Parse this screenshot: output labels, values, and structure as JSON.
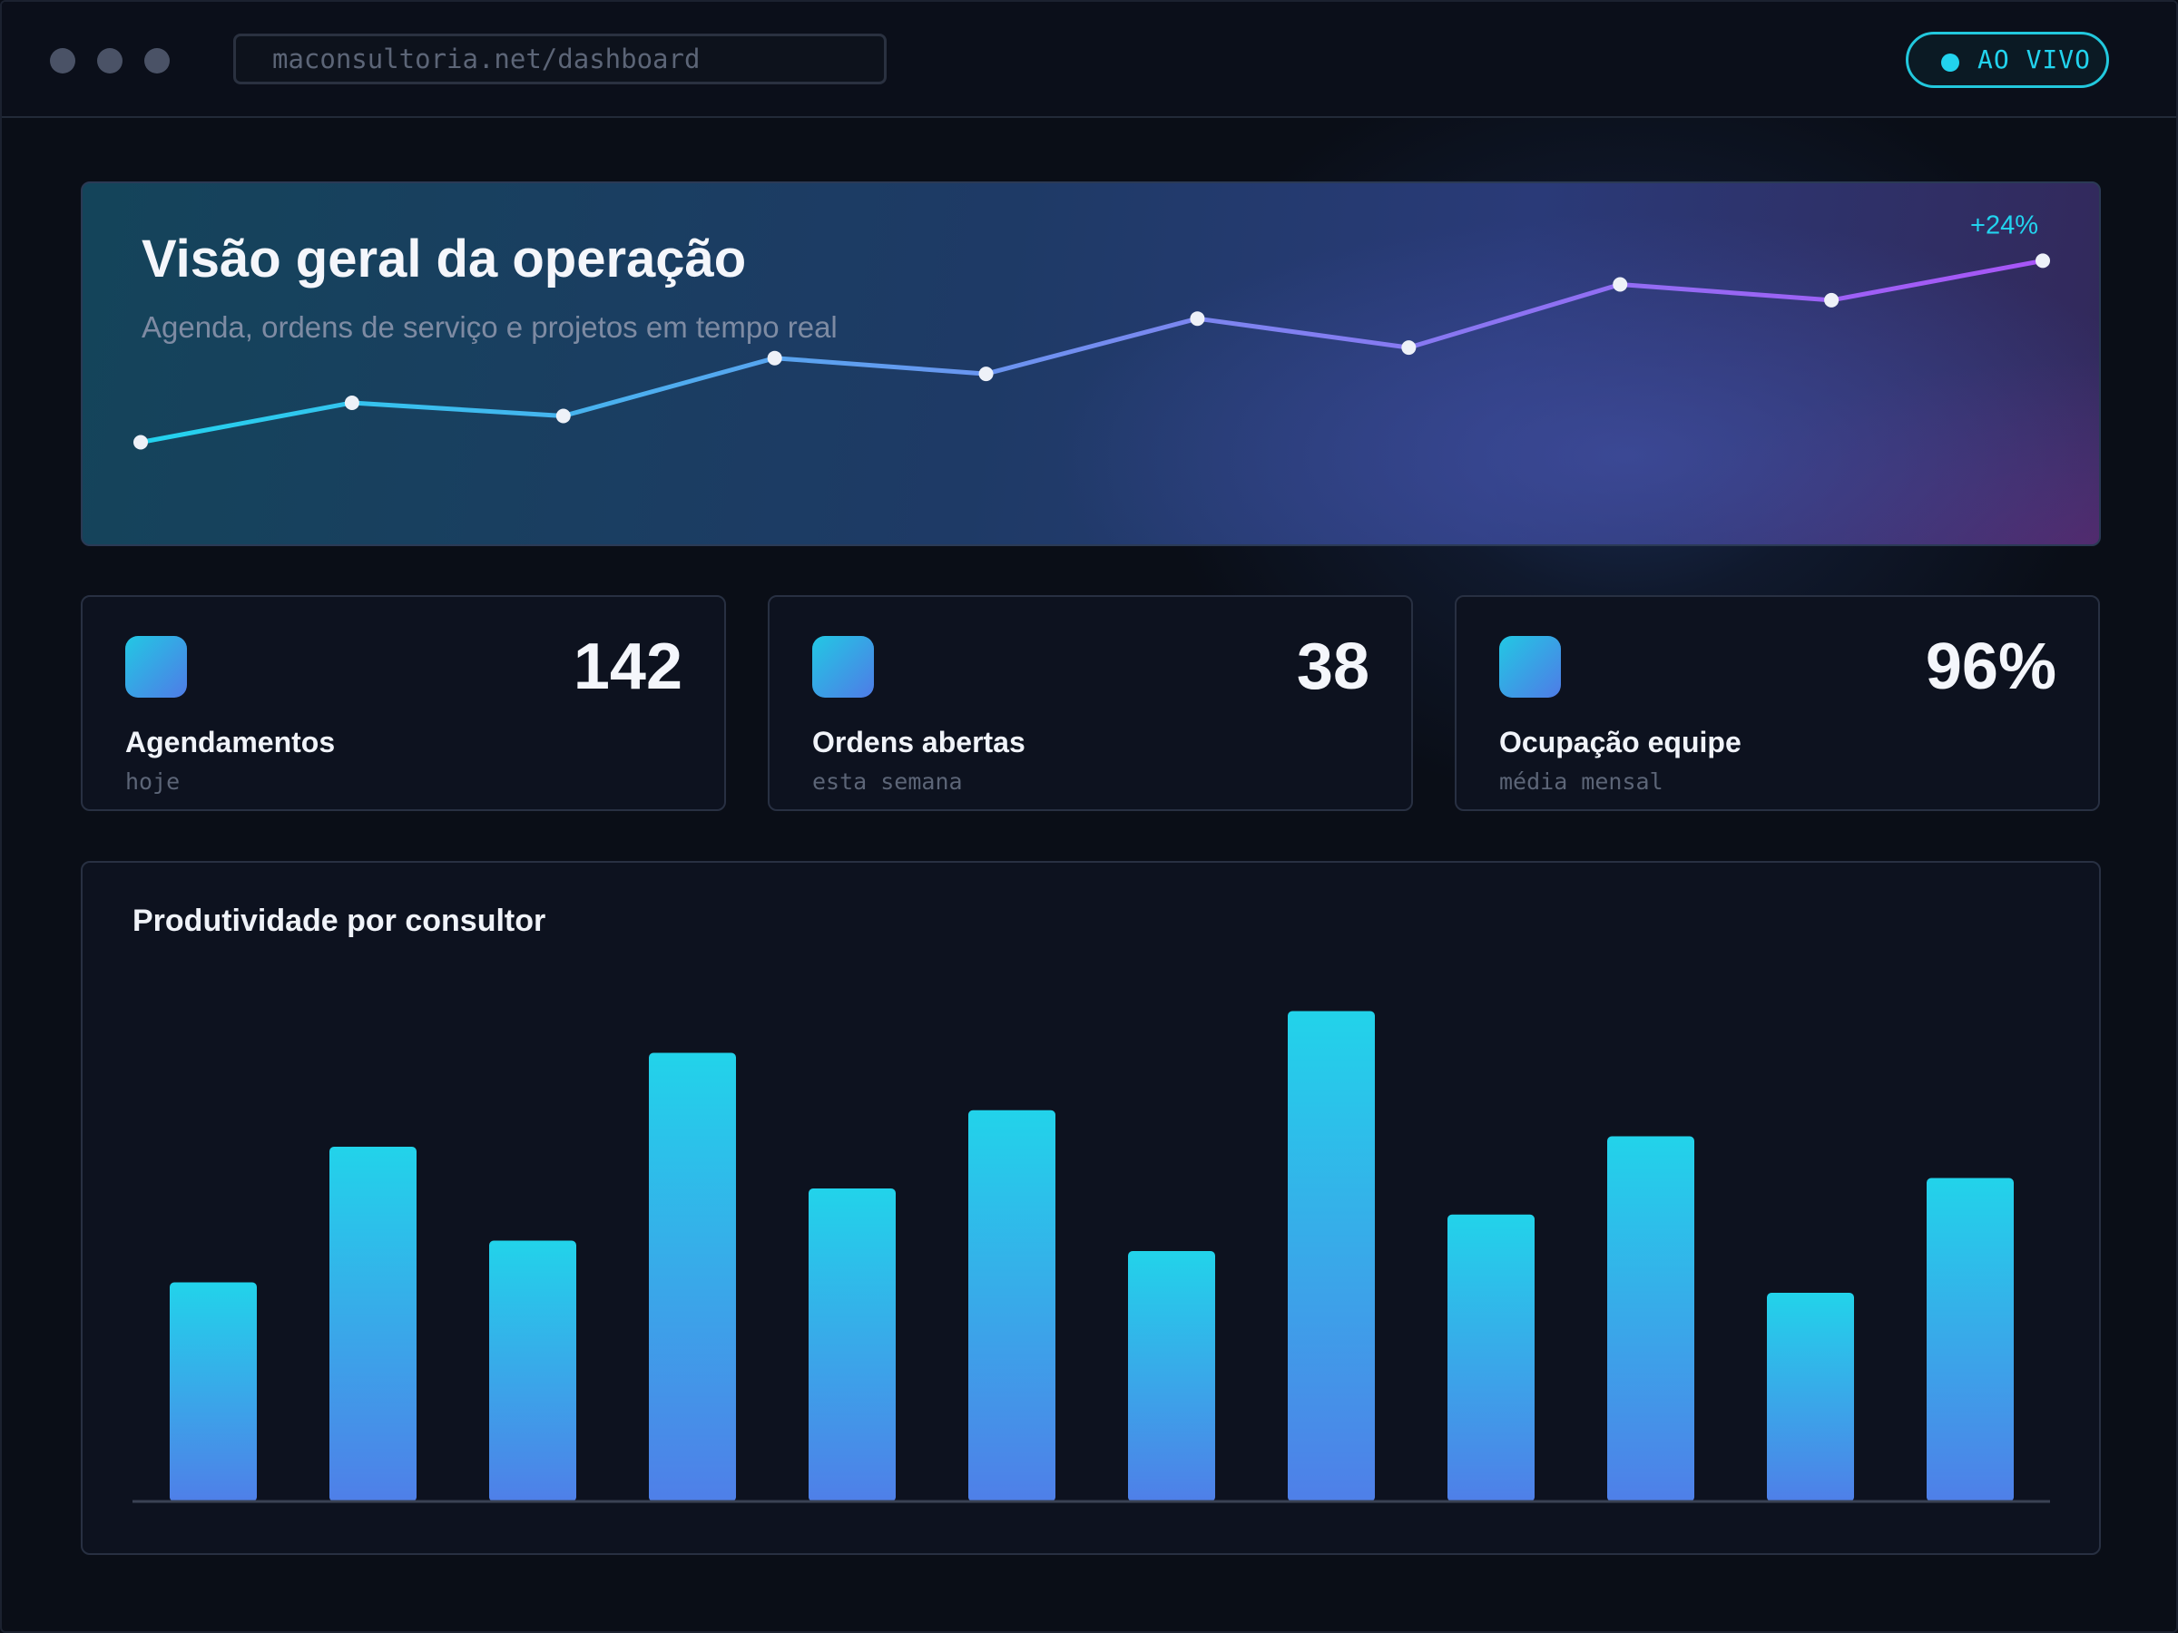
{
  "browser": {
    "url": "maconsultoria.net/dashboard",
    "live_label": "AO VIVO"
  },
  "hero": {
    "title": "Visão geral da operação",
    "subtitle": "Agenda, ordens de serviço e projetos em tempo real",
    "trend_label": "+24%"
  },
  "kpis": [
    {
      "value": "142",
      "label": "Agendamentos",
      "sub": "hoje"
    },
    {
      "value": "38",
      "label": "Ordens abertas",
      "sub": "esta semana"
    },
    {
      "value": "96%",
      "label": "Ocupação equipe",
      "sub": "média mensal"
    }
  ],
  "productivity": {
    "title": "Produtividade por consultor"
  },
  "colors": {
    "accent_cyan": "#22d3ee",
    "accent_blue": "#4f7be6",
    "accent_purple": "#a855f7"
  },
  "chart_data": [
    {
      "type": "line",
      "title": "",
      "x": [
        1,
        2,
        3,
        4,
        5,
        6,
        7,
        8,
        9,
        10
      ],
      "series": [
        {
          "values": [
            5,
            20,
            15,
            37,
            31,
            52,
            41,
            65,
            59,
            74
          ]
        }
      ],
      "ylim": [
        0,
        100
      ],
      "grid": false,
      "annotation": "+24%"
    },
    {
      "type": "bar",
      "title": "Produtividade por consultor",
      "categories": [
        "",
        "",
        "",
        "",
        "",
        "",
        "",
        "",
        "",
        "",
        "",
        ""
      ],
      "values": [
        42,
        68,
        50,
        86,
        60,
        75,
        48,
        94,
        55,
        70,
        40,
        62
      ],
      "ylim": [
        0,
        100
      ],
      "grid": false
    }
  ]
}
